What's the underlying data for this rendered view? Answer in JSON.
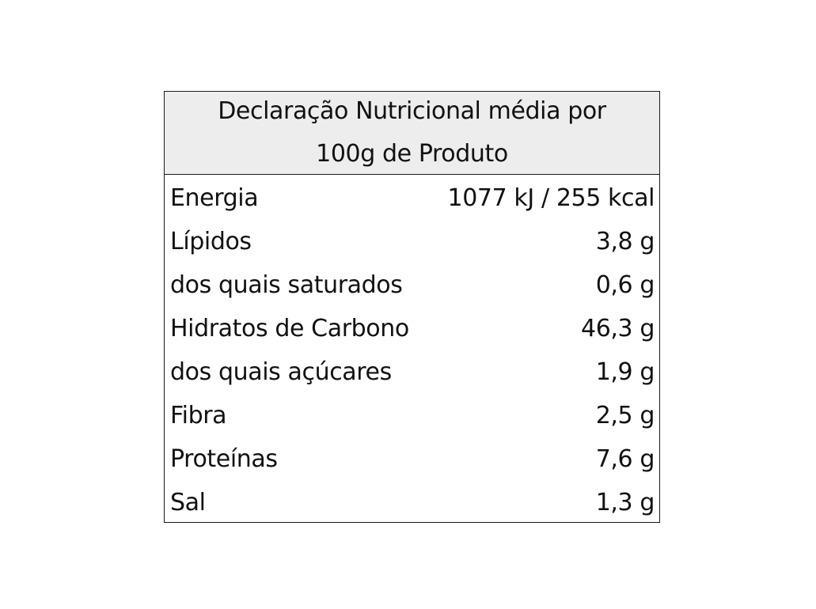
{
  "table": {
    "title_line1": "Declaração Nutricional média por",
    "title_line2": "100g de Produto",
    "rows": [
      {
        "label": "Energia",
        "value": "1077 kJ / 255 kcal"
      },
      {
        "label": "Lípidos",
        "value": "3,8 g"
      },
      {
        "label": "dos quais saturados",
        "value": "0,6 g"
      },
      {
        "label": "Hidratos de Carbono",
        "value": "46,3 g"
      },
      {
        "label": "dos quais açúcares",
        "value": "1,9 g"
      },
      {
        "label": "Fibra",
        "value": "2,5 g"
      },
      {
        "label": "Proteínas",
        "value": "7,6 g"
      },
      {
        "label": "Sal",
        "value": "1,3 g"
      }
    ]
  }
}
